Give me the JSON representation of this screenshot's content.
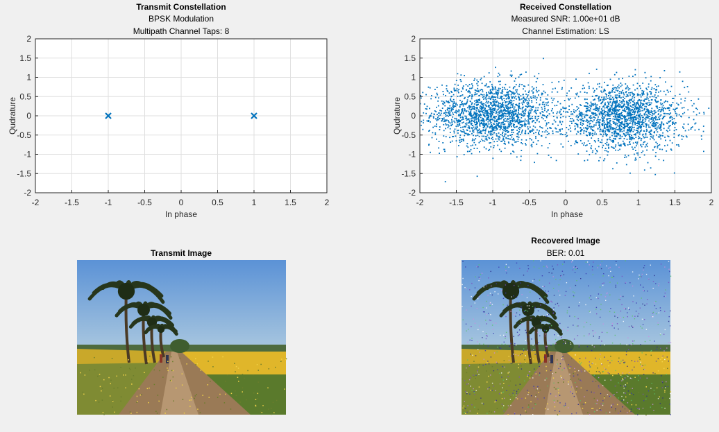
{
  "colors": {
    "figure_bg": "#f0f0f0",
    "axes_bg": "#ffffff",
    "grid": "#dfdfdf",
    "axis": "#262626",
    "marker": "#0072bd"
  },
  "chart_data": [
    {
      "type": "scatter",
      "title": "Transmit Constellation",
      "subtitles": [
        "BPSK Modulation",
        "Multipath Channel Taps: 8"
      ],
      "xlabel": "In phase",
      "ylabel": "Qudrature",
      "xlim": [
        -2,
        2
      ],
      "ylim": [
        -2,
        2
      ],
      "xticks": [
        "-2",
        "-1.5",
        "-1",
        "-0.5",
        "0",
        "0.5",
        "1",
        "1.5",
        "2"
      ],
      "yticks": [
        "2",
        "1.5",
        "1",
        "0.5",
        "0",
        "-0.5",
        "-1",
        "-1.5",
        "-2"
      ],
      "grid": true,
      "marker": "x",
      "points": [
        [
          -1,
          0
        ],
        [
          1,
          0
        ]
      ]
    },
    {
      "type": "scatter",
      "title": "Received Constellation",
      "subtitles": [
        "Measured SNR: 1.00e+01 dB",
        "Channel Estimation: LS"
      ],
      "xlabel": "In phase",
      "ylabel": "Qudrature",
      "xlim": [
        -2,
        2
      ],
      "ylim": [
        -2,
        2
      ],
      "xticks": [
        "-2",
        "-1.5",
        "-1",
        "-0.5",
        "0",
        "0.5",
        "1",
        "1.5",
        "2"
      ],
      "yticks": [
        "2",
        "1.5",
        "1",
        "0.5",
        "0",
        "-0.5",
        "-1",
        "-1.5",
        "-2"
      ],
      "grid": true,
      "marker": "dot",
      "clusters": [
        {
          "center": [
            -1,
            0.05
          ],
          "spread": [
            0.42,
            0.42
          ],
          "count": 1800
        },
        {
          "center": [
            0.8,
            -0.05
          ],
          "spread": [
            0.42,
            0.42
          ],
          "count": 1800
        }
      ]
    }
  ],
  "images": [
    {
      "title": "Transmit Image",
      "subtitle": "",
      "noisy": false
    },
    {
      "title": "Recovered Image",
      "subtitle": "BER: 0.01",
      "noisy": true
    }
  ]
}
